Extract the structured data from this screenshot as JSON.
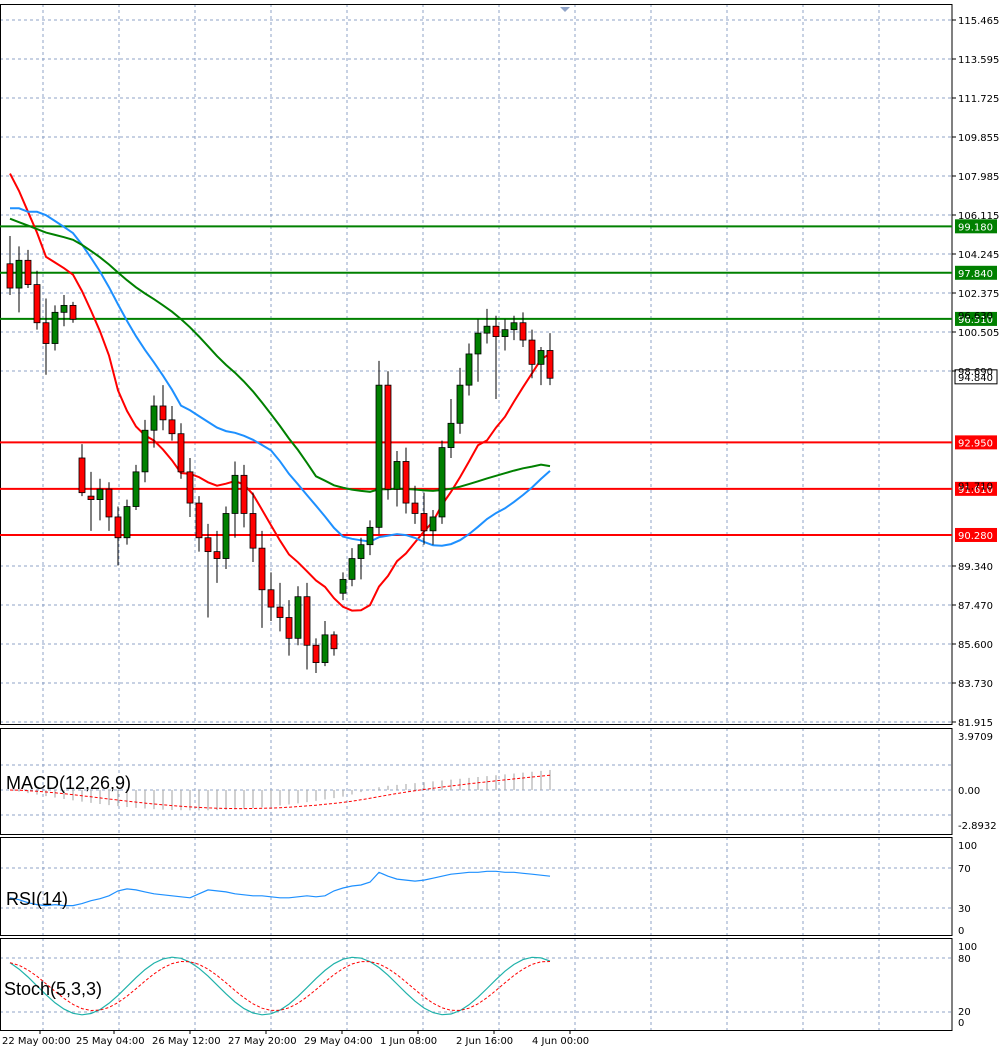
{
  "chart_data": {
    "type": "candlestick",
    "price_ticks": [
      "115.465",
      "113.595",
      "111.725",
      "109.855",
      "107.985",
      "106.115",
      "104.245",
      "102.375",
      "100.505",
      "98.690",
      "89.340",
      "87.470",
      "85.600",
      "83.730",
      "81.915"
    ],
    "partial_ticks": [
      "96.630",
      "91.710"
    ],
    "current_price": "94.840",
    "time_labels": [
      "22 May 00:00",
      "25 May 04:00",
      "26 May 12:00",
      "27 May 20:00",
      "29 May 04:00",
      "1 Jun 08:00",
      "2 Jun 16:00",
      "4 Jun 00:00"
    ],
    "levels": [
      {
        "value": "99.180",
        "color": "#008000"
      },
      {
        "value": "97.840",
        "color": "#008000"
      },
      {
        "value": "96.510",
        "color": "#008000"
      },
      {
        "value": "92.950",
        "color": "#ff0000"
      },
      {
        "value": "91.610",
        "color": "#ff0000"
      },
      {
        "value": "90.280",
        "color": "#ff0000"
      }
    ],
    "candles": [
      [
        98.1,
        98.9,
        97.2,
        97.4
      ],
      [
        97.4,
        98.6,
        96.7,
        98.2
      ],
      [
        98.2,
        98.5,
        97.4,
        97.5
      ],
      [
        97.5,
        97.9,
        96.2,
        96.4
      ],
      [
        96.4,
        97.1,
        94.9,
        95.8
      ],
      [
        95.8,
        96.9,
        95.6,
        96.7
      ],
      [
        96.7,
        97.2,
        96.3,
        96.9
      ],
      [
        96.9,
        97.0,
        96.4,
        96.5
      ],
      [
        92.5,
        92.9,
        91.4,
        91.5
      ],
      [
        91.4,
        92.1,
        90.4,
        91.3
      ],
      [
        91.3,
        91.9,
        90.7,
        91.6
      ],
      [
        91.6,
        91.8,
        90.4,
        90.8
      ],
      [
        90.8,
        91.1,
        89.4,
        90.2
      ],
      [
        90.2,
        91.3,
        90.0,
        91.1
      ],
      [
        91.1,
        92.3,
        91.0,
        92.1
      ],
      [
        92.1,
        93.6,
        91.8,
        93.3
      ],
      [
        93.3,
        94.3,
        92.8,
        94.0
      ],
      [
        94.0,
        94.6,
        93.3,
        93.6
      ],
      [
        93.6,
        94.0,
        93.0,
        93.2
      ],
      [
        93.2,
        93.5,
        91.9,
        92.1
      ],
      [
        92.1,
        92.5,
        90.8,
        91.2
      ],
      [
        91.2,
        91.4,
        89.8,
        90.2
      ],
      [
        90.2,
        90.6,
        87.9,
        89.8
      ],
      [
        89.8,
        90.4,
        88.9,
        89.6
      ],
      [
        89.6,
        91.1,
        89.3,
        90.9
      ],
      [
        90.9,
        92.4,
        90.2,
        92.0
      ],
      [
        92.0,
        92.3,
        90.5,
        90.9
      ],
      [
        90.9,
        91.5,
        89.5,
        89.9
      ],
      [
        89.9,
        90.4,
        87.6,
        88.7
      ],
      [
        88.7,
        89.2,
        87.8,
        88.2
      ],
      [
        88.2,
        88.9,
        87.5,
        87.9
      ],
      [
        87.9,
        88.4,
        86.8,
        87.3
      ],
      [
        87.3,
        88.8,
        87.1,
        88.5
      ],
      [
        88.5,
        88.9,
        86.4,
        87.1
      ],
      [
        87.1,
        87.3,
        86.3,
        86.6
      ],
      [
        86.6,
        87.8,
        86.5,
        87.4
      ],
      [
        87.4,
        87.5,
        86.8,
        87.0
      ],
      [
        88.6,
        89.2,
        88.4,
        89.0
      ],
      [
        89.0,
        89.9,
        88.8,
        89.6
      ],
      [
        89.6,
        90.2,
        89.0,
        90.0
      ],
      [
        90.0,
        90.7,
        89.7,
        90.5
      ],
      [
        90.5,
        95.3,
        90.3,
        94.6
      ],
      [
        94.6,
        95.0,
        91.3,
        91.6
      ],
      [
        91.6,
        92.7,
        91.1,
        92.4
      ],
      [
        92.4,
        92.8,
        90.9,
        91.2
      ],
      [
        91.2,
        91.7,
        90.6,
        90.9
      ],
      [
        90.9,
        91.5,
        90.0,
        90.4
      ],
      [
        90.4,
        91.0,
        90.0,
        90.8
      ],
      [
        90.8,
        93.0,
        90.6,
        92.8
      ],
      [
        92.8,
        94.2,
        92.5,
        93.5
      ],
      [
        93.5,
        95.1,
        93.2,
        94.6
      ],
      [
        94.6,
        95.8,
        94.3,
        95.5
      ],
      [
        95.5,
        96.5,
        94.7,
        96.1
      ],
      [
        96.1,
        96.8,
        95.8,
        96.3
      ],
      [
        96.3,
        96.6,
        94.2,
        96.0
      ],
      [
        96.0,
        96.5,
        95.6,
        96.2
      ],
      [
        96.2,
        96.6,
        95.9,
        96.4
      ],
      [
        96.4,
        96.7,
        95.7,
        95.9
      ],
      [
        95.9,
        96.2,
        94.8,
        95.2
      ],
      [
        95.2,
        95.7,
        94.6,
        95.6
      ],
      [
        95.6,
        96.1,
        94.6,
        94.8
      ]
    ],
    "macd": {
      "label": "MACD(12,26,9)",
      "ticks": [
        "3.9709",
        "0.00",
        "-2.8932"
      ]
    },
    "rsi": {
      "label": "RSI(14)",
      "ticks": [
        "100",
        "70",
        "30",
        "0"
      ]
    },
    "stoch": {
      "label": "Stoch(5,3,3)",
      "ticks": [
        "100",
        "80",
        "20",
        "0"
      ]
    },
    "colors": {
      "bull": "#008000",
      "bear": "#ff0000",
      "grid": "#8fa3c7",
      "ma_red": "#ff0000",
      "ma_green": "#008000",
      "ma_blue": "#1e90ff",
      "rsi": "#1e90ff",
      "stoch_main": "#20b2aa",
      "stoch_signal": "#ff0000"
    }
  }
}
